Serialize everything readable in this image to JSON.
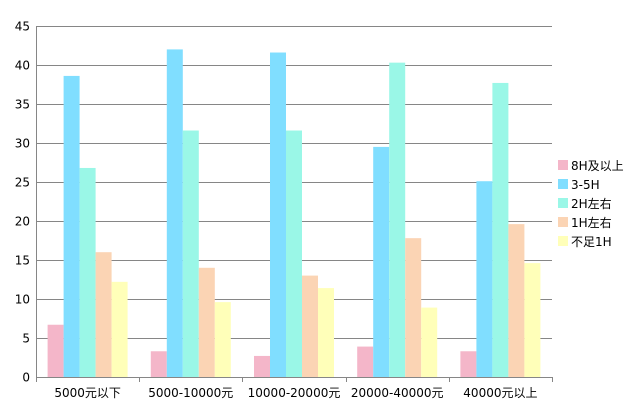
{
  "chart_data": {
    "type": "bar",
    "categories": [
      "5000元以下",
      "5000-10000元",
      "10000-20000元",
      "20000-40000元",
      "40000元以上"
    ],
    "series": [
      {
        "name": "8H及以上",
        "color": "#F4B6C9",
        "values": [
          6.7,
          3.3,
          2.7,
          3.9,
          3.3
        ]
      },
      {
        "name": "3-5H",
        "color": "#80DEFF",
        "values": [
          38.6,
          42.0,
          41.6,
          29.5,
          25.1
        ]
      },
      {
        "name": "2H左右",
        "color": "#9AF7E7",
        "values": [
          26.8,
          31.6,
          31.6,
          40.3,
          37.7
        ]
      },
      {
        "name": "1H左右",
        "color": "#FBD4B4",
        "values": [
          16.0,
          14.0,
          13.0,
          17.8,
          19.6
        ]
      },
      {
        "name": "不足1H",
        "color": "#FFFFB9",
        "values": [
          12.2,
          9.6,
          11.4,
          8.9,
          14.6
        ]
      }
    ],
    "yticks": [
      "0",
      "5",
      "10",
      "15",
      "20",
      "25",
      "30",
      "35",
      "40",
      "45"
    ],
    "ylim": [
      0,
      45
    ],
    "grid": true,
    "legend": "right",
    "title": "",
    "xlabel": "",
    "ylabel": ""
  }
}
